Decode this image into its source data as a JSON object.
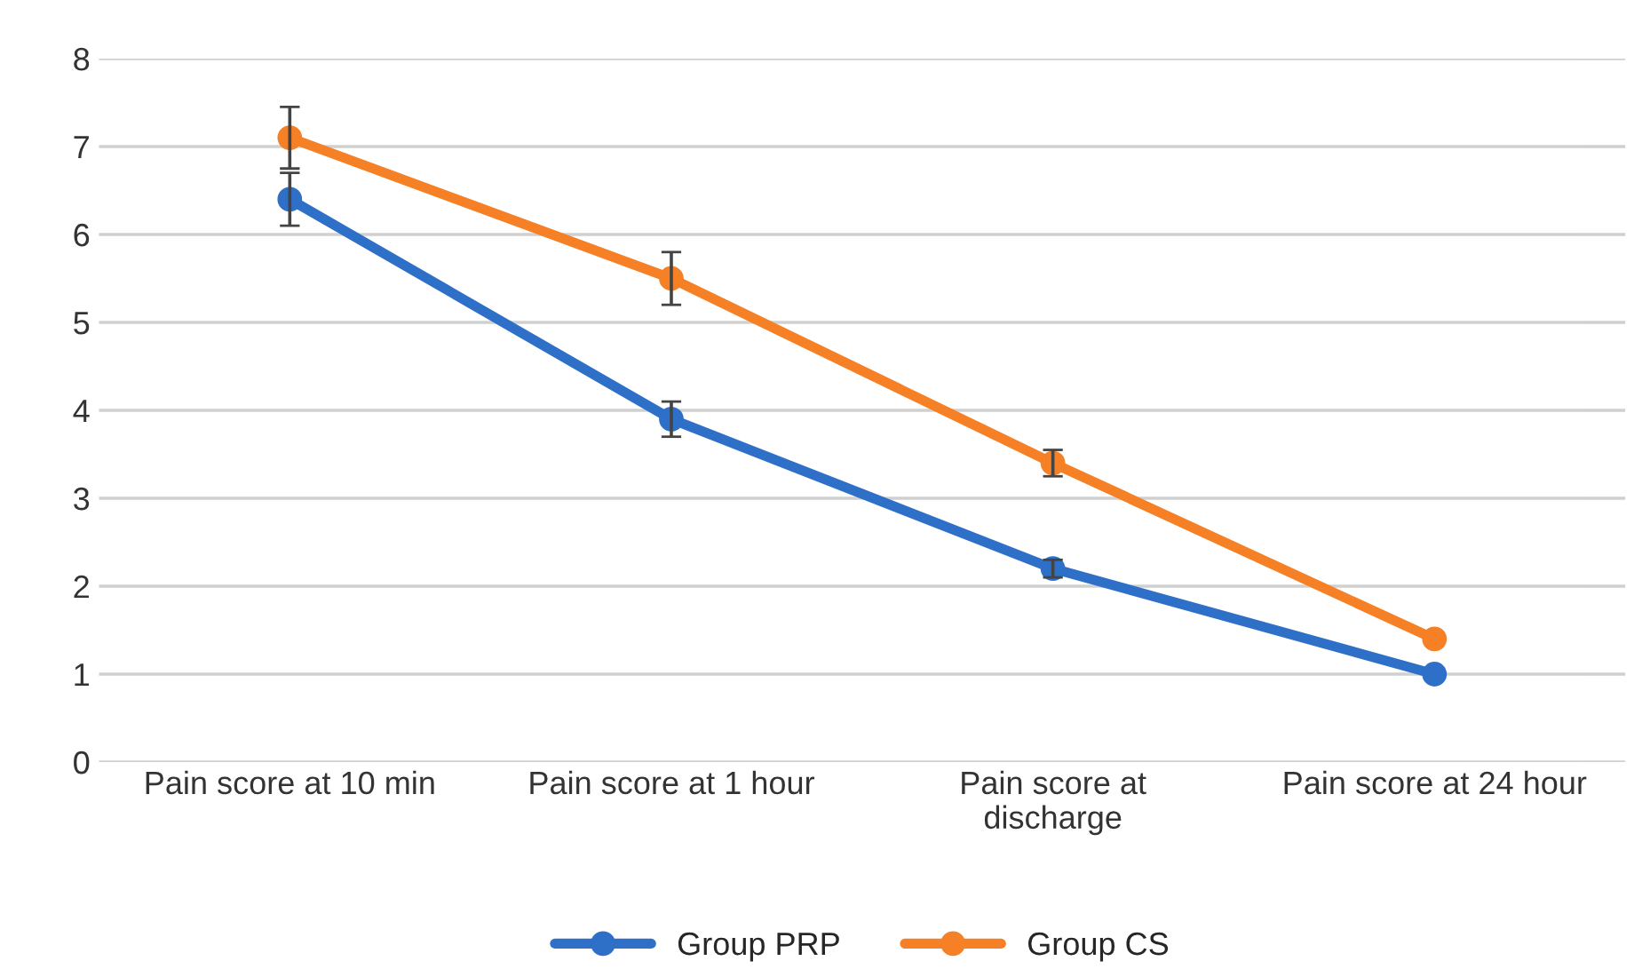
{
  "chart_data": {
    "type": "line",
    "categories": [
      "Pain score at 10 min",
      "Pain score at 1 hour",
      "Pain score at\ndischarge",
      "Pain score at 24 hour"
    ],
    "series": [
      {
        "name": "Group PRP",
        "color": "#2e6fc7",
        "values": [
          6.4,
          3.9,
          2.2,
          1.0
        ],
        "errors": [
          0.3,
          0.2,
          0.1,
          null
        ]
      },
      {
        "name": "Group CS",
        "color": "#f58025",
        "values": [
          7.1,
          5.5,
          3.4,
          1.4
        ],
        "errors": [
          0.35,
          0.3,
          0.15,
          null
        ]
      }
    ],
    "ylim": [
      0,
      8
    ],
    "yticks": [
      0,
      1,
      2,
      3,
      4,
      5,
      6,
      7,
      8
    ],
    "grid": "y",
    "legend": "bottom",
    "marker": "circle",
    "line_style": "solid"
  }
}
